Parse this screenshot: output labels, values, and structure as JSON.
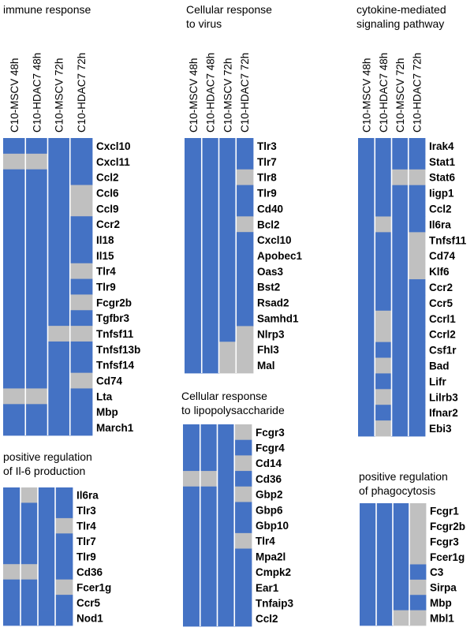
{
  "colors": {
    "expressed": "#4472c4",
    "absent": "#c0c0c0",
    "separator": "#ffffff"
  },
  "chart_data": [
    {
      "type": "heatmap",
      "title": [
        "immune response"
      ],
      "columns": [
        "C10-MSCV 48h",
        "C10-HDAC7 48h",
        "C10-MSCV 72h",
        "C10-HDAC7 72h"
      ],
      "rows": [
        "Cxcl10",
        "Cxcl11",
        "Ccl2",
        "Ccl6",
        "Ccl9",
        "Ccr2",
        "Il18",
        "Il15",
        "Tlr4",
        "Tlr9",
        "Fcgr2b",
        "Tgfbr3",
        "Tnfsf11",
        "Tnfsf13b",
        "Tnfsf14",
        "Cd74",
        "Lta",
        "Mbp",
        "March1"
      ],
      "values": [
        [
          1,
          1,
          1,
          1
        ],
        [
          0,
          0,
          1,
          1
        ],
        [
          1,
          1,
          1,
          1
        ],
        [
          1,
          1,
          1,
          0
        ],
        [
          1,
          1,
          1,
          0
        ],
        [
          1,
          1,
          1,
          1
        ],
        [
          1,
          1,
          1,
          1
        ],
        [
          1,
          1,
          1,
          1
        ],
        [
          1,
          1,
          1,
          0
        ],
        [
          1,
          1,
          1,
          1
        ],
        [
          1,
          1,
          1,
          0
        ],
        [
          1,
          1,
          1,
          1
        ],
        [
          1,
          1,
          0,
          0
        ],
        [
          1,
          1,
          1,
          1
        ],
        [
          1,
          1,
          1,
          1
        ],
        [
          1,
          1,
          1,
          0
        ],
        [
          0,
          0,
          1,
          1
        ],
        [
          1,
          1,
          1,
          1
        ],
        [
          1,
          1,
          1,
          1
        ]
      ]
    },
    {
      "type": "heatmap",
      "title": [
        "Cellular response",
        "to virus"
      ],
      "columns": [
        "C10-MSCV 48h",
        "C10-HDAC7 48h",
        "C10-MSCV 72h",
        "C10-HDAC7 72h"
      ],
      "rows": [
        "Tlr3",
        "Tlr7",
        "Tlr8",
        "Tlr9",
        "Cd40",
        "Bcl2",
        "Cxcl10",
        "Apobec1",
        "Oas3",
        "Bst2",
        "Rsad2",
        "Samhd1",
        "Nlrp3",
        "Fhl3",
        "Mal"
      ],
      "values": [
        [
          1,
          1,
          1,
          1
        ],
        [
          1,
          1,
          1,
          1
        ],
        [
          1,
          1,
          1,
          0
        ],
        [
          1,
          1,
          1,
          1
        ],
        [
          1,
          1,
          1,
          1
        ],
        [
          1,
          1,
          1,
          0
        ],
        [
          1,
          1,
          1,
          1
        ],
        [
          1,
          1,
          1,
          1
        ],
        [
          1,
          1,
          1,
          1
        ],
        [
          1,
          1,
          1,
          1
        ],
        [
          1,
          1,
          1,
          1
        ],
        [
          1,
          1,
          1,
          1
        ],
        [
          1,
          1,
          1,
          0
        ],
        [
          1,
          1,
          0,
          0
        ],
        [
          1,
          1,
          0,
          0
        ]
      ]
    },
    {
      "type": "heatmap",
      "title": [
        "cytokine-mediated",
        "signaling pathway"
      ],
      "columns": [
        "C10-MSCV 48h",
        "C10-HDAC7 48h",
        "C10-MSCV 72h",
        "C10-HDAC7 72h"
      ],
      "rows": [
        "Irak4",
        "Stat1",
        "Stat6",
        "Iigp1",
        "Ccl2",
        "Il6ra",
        "Tnfsf11",
        "Cd74",
        "Klf6",
        "Ccr2",
        "Ccr5",
        "Ccrl1",
        "Ccrl2",
        "Csf1r",
        "Bad",
        "Lifr",
        "Lilrb3",
        "Ifnar2",
        "Ebi3"
      ],
      "values": [
        [
          1,
          1,
          1,
          1
        ],
        [
          1,
          1,
          1,
          1
        ],
        [
          1,
          1,
          0,
          0
        ],
        [
          1,
          1,
          1,
          1
        ],
        [
          1,
          1,
          1,
          1
        ],
        [
          1,
          0,
          1,
          1
        ],
        [
          1,
          1,
          1,
          0
        ],
        [
          1,
          1,
          1,
          0
        ],
        [
          1,
          1,
          1,
          0
        ],
        [
          1,
          1,
          1,
          1
        ],
        [
          1,
          1,
          1,
          1
        ],
        [
          1,
          0,
          1,
          1
        ],
        [
          1,
          0,
          1,
          1
        ],
        [
          1,
          1,
          1,
          1
        ],
        [
          1,
          0,
          1,
          1
        ],
        [
          1,
          1,
          1,
          1
        ],
        [
          1,
          0,
          1,
          1
        ],
        [
          1,
          1,
          1,
          1
        ],
        [
          1,
          0,
          1,
          1
        ]
      ]
    },
    {
      "type": "heatmap",
      "title": [
        "positive regulation",
        "of Il-6 production"
      ],
      "columns": [],
      "rows": [
        "Il6ra",
        "Tlr3",
        "Tlr4",
        "Tlr7",
        "Tlr9",
        "Cd36",
        "Fcer1g",
        "Ccr5",
        "Nod1"
      ],
      "values": [
        [
          1,
          0,
          1,
          1
        ],
        [
          1,
          1,
          1,
          1
        ],
        [
          1,
          1,
          1,
          0
        ],
        [
          1,
          1,
          1,
          1
        ],
        [
          1,
          1,
          1,
          1
        ],
        [
          0,
          0,
          1,
          1
        ],
        [
          1,
          1,
          1,
          0
        ],
        [
          1,
          1,
          1,
          1
        ],
        [
          1,
          1,
          1,
          1
        ]
      ]
    },
    {
      "type": "heatmap",
      "title": [
        "Cellular response",
        "to lipopolysaccharide"
      ],
      "columns": [],
      "rows": [
        "Fcgr3",
        "Fcgr4",
        "Cd14",
        "Cd36",
        "Gbp2",
        "Gbp6",
        "Gbp10",
        "Tlr4",
        "Mpa2l",
        "Cmpk2",
        "Ear1",
        "Tnfaip3",
        "Ccl2"
      ],
      "values": [
        [
          1,
          1,
          1,
          0
        ],
        [
          1,
          1,
          1,
          1
        ],
        [
          1,
          1,
          1,
          0
        ],
        [
          0,
          0,
          1,
          1
        ],
        [
          1,
          1,
          1,
          0
        ],
        [
          1,
          1,
          1,
          1
        ],
        [
          1,
          1,
          1,
          1
        ],
        [
          1,
          1,
          1,
          0
        ],
        [
          1,
          1,
          1,
          1
        ],
        [
          1,
          1,
          1,
          1
        ],
        [
          1,
          1,
          1,
          1
        ],
        [
          1,
          1,
          1,
          1
        ],
        [
          1,
          1,
          1,
          1
        ]
      ]
    },
    {
      "type": "heatmap",
      "title": [
        "positive regulation",
        "of phagocytosis"
      ],
      "columns": [],
      "rows": [
        "Fcgr1",
        "Fcgr2b",
        "Fcgr3",
        "Fcer1g",
        "C3",
        "Sirpa",
        "Mbp",
        "Mbl1"
      ],
      "values": [
        [
          1,
          1,
          1,
          0
        ],
        [
          1,
          1,
          1,
          0
        ],
        [
          1,
          1,
          1,
          0
        ],
        [
          1,
          1,
          1,
          0
        ],
        [
          1,
          1,
          1,
          1
        ],
        [
          1,
          1,
          1,
          0
        ],
        [
          1,
          1,
          1,
          1
        ],
        [
          1,
          1,
          0,
          0
        ]
      ]
    }
  ]
}
